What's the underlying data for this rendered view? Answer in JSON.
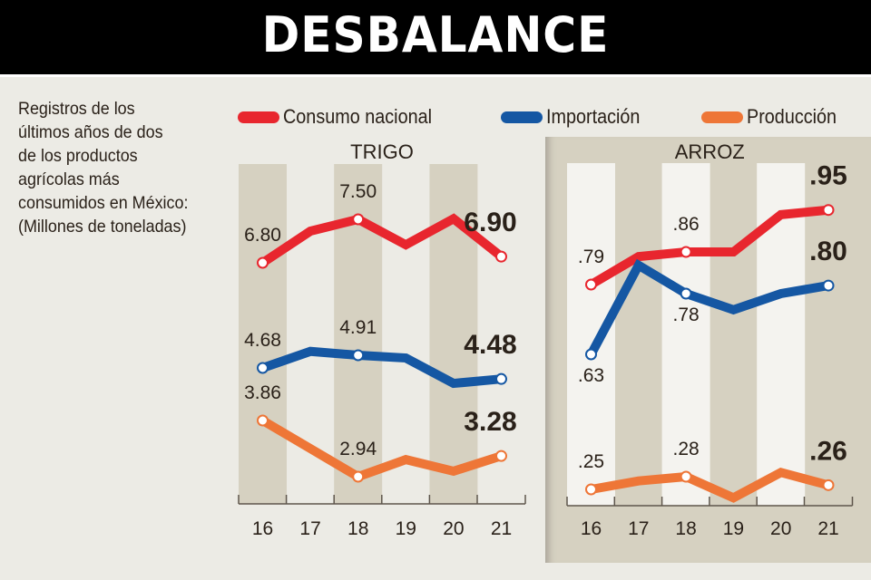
{
  "header": {
    "title": "DESBALANCE"
  },
  "description": "Registros de los\núltimos años de dos\nde los productos\nagrícolas más\nconsumidos en México:\n(Millones de toneladas)",
  "legend": [
    {
      "label": "Consumo nacional",
      "color": "#e8262e"
    },
    {
      "label": "Importación",
      "color": "#1557a3"
    },
    {
      "label": "Producción",
      "color": "#ee7637"
    }
  ],
  "chart_data": [
    {
      "type": "line",
      "title": "TRIGO",
      "unit": "Millones de toneladas",
      "x": [
        "16",
        "17",
        "18",
        "19",
        "20",
        "21"
      ],
      "series": [
        {
          "name": "Consumo nacional",
          "color": "#e8262e",
          "values": [
            6.8,
            7.31,
            7.5,
            7.09,
            7.51,
            6.9
          ],
          "labels": [
            {
              "i": 0,
              "text": "6.80"
            },
            {
              "i": 2,
              "text": "7.50"
            },
            {
              "i": 5,
              "text": "6.90",
              "bold": true
            }
          ]
        },
        {
          "name": "Importación",
          "color": "#1557a3",
          "values": [
            4.68,
            4.98,
            4.91,
            4.86,
            4.4,
            4.48
          ],
          "labels": [
            {
              "i": 0,
              "text": "4.68"
            },
            {
              "i": 2,
              "text": "4.91"
            },
            {
              "i": 5,
              "text": "4.48",
              "bold": true
            }
          ]
        },
        {
          "name": "Producción",
          "color": "#ee7637",
          "values": [
            3.86,
            3.4,
            2.94,
            3.22,
            3.03,
            3.28
          ],
          "labels": [
            {
              "i": 0,
              "text": "3.86"
            },
            {
              "i": 2,
              "text": "2.94"
            },
            {
              "i": 5,
              "text": "3.28",
              "bold": true
            }
          ]
        }
      ],
      "grid": false,
      "legend_position": "top"
    },
    {
      "type": "line",
      "title": "ARROZ",
      "unit": "Millones de toneladas",
      "x": [
        "16",
        "17",
        "18",
        "19",
        "20",
        "21"
      ],
      "series": [
        {
          "name": "Consumo nacional",
          "color": "#e8262e",
          "values": [
            0.79,
            0.85,
            0.86,
            0.86,
            0.94,
            0.95
          ],
          "labels": [
            {
              "i": 0,
              "text": ".79"
            },
            {
              "i": 2,
              "text": ".86"
            },
            {
              "i": 5,
              "text": ".95",
              "bold": true
            }
          ]
        },
        {
          "name": "Importación",
          "color": "#1557a3",
          "values": [
            0.63,
            0.85,
            0.78,
            0.74,
            0.78,
            0.8
          ],
          "labels": [
            {
              "i": 0,
              "text": ".63",
              "below": true
            },
            {
              "i": 2,
              "text": ".78",
              "below": true
            },
            {
              "i": 5,
              "text": ".80",
              "bold": true
            }
          ]
        },
        {
          "name": "Producción",
          "color": "#ee7637",
          "values": [
            0.25,
            0.27,
            0.28,
            0.23,
            0.29,
            0.26
          ],
          "labels": [
            {
              "i": 0,
              "text": ".25"
            },
            {
              "i": 2,
              "text": ".28"
            },
            {
              "i": 5,
              "text": ".26",
              "bold": true
            }
          ]
        }
      ],
      "grid": false,
      "legend_position": "top"
    }
  ]
}
